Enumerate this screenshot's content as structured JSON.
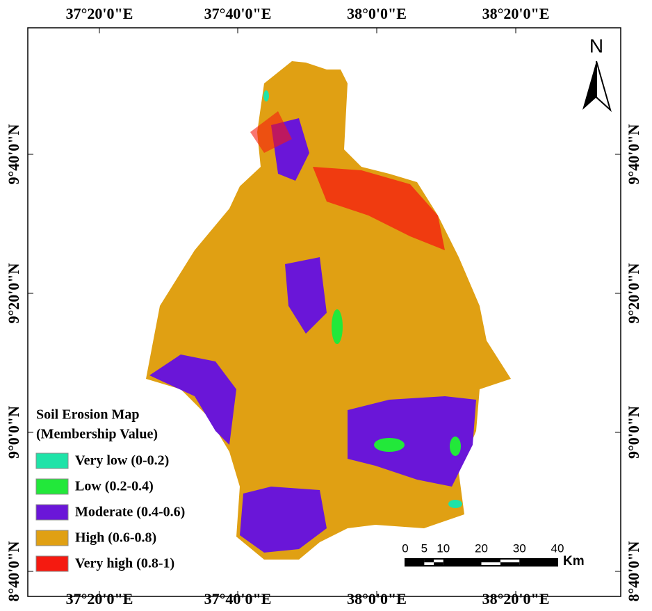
{
  "map": {
    "top_labels": [
      "37°20'0\"E",
      "37°40'0\"E",
      "38°0'0\"E",
      "38°20'0\"E"
    ],
    "bottom_labels": [
      "37°20'0\"E",
      "37°40'0\"E",
      "38°0'0\"E",
      "38°20'0\"E"
    ],
    "left_labels": [
      "9°40'0\"N",
      "9°20'0\"N",
      "9°0'0\"N",
      "8°40'0\"N"
    ],
    "right_labels": [
      "9°40'0\"N",
      "9°20'0\"N",
      "9°0'0\"N",
      "8°40'0\"N"
    ],
    "north": "N",
    "legend": {
      "title": [
        "Soil Erosion Map",
        "(Membership Value)"
      ],
      "items": [
        {
          "label": "Very low (0-0.2)",
          "color": "#1fe3a8"
        },
        {
          "label": "Low (0.2-0.4)",
          "color": "#22e83a"
        },
        {
          "label": "Moderate (0.4-0.6)",
          "color": "#6a16d8"
        },
        {
          "label": "High (0.6-0.8)",
          "color": "#e0a013"
        },
        {
          "label": "Very high (0.8-1)",
          "color": "#f51a10"
        }
      ]
    },
    "scale": {
      "ticks": [
        0,
        5,
        10,
        20,
        30,
        40
      ],
      "unit": "Km"
    }
  }
}
